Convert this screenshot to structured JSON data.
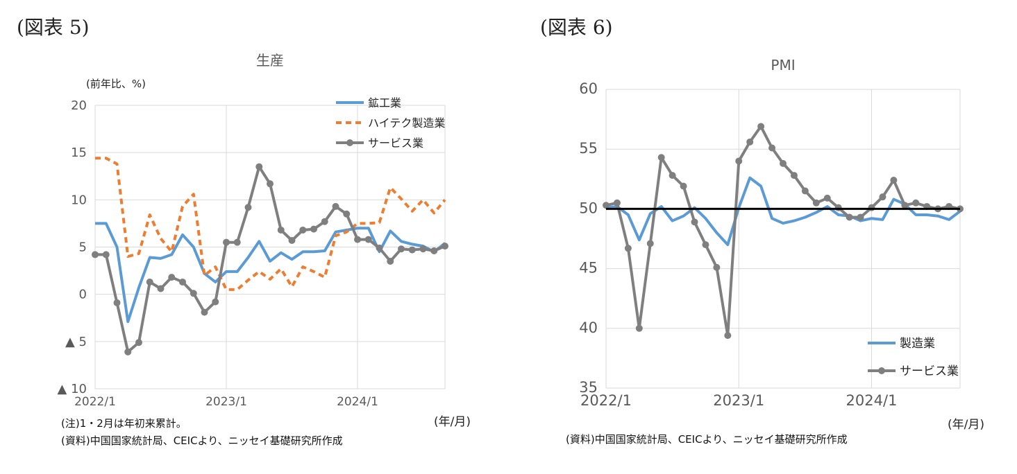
{
  "figure_left_label": "(図表 5)",
  "figure_right_label": "(図表 6)",
  "left_notes": {
    "note1": "(注)1・2月は年初来累計。",
    "source": "(資料)中国国家統計局、CEICより、ニッセイ基礎研究所作成"
  },
  "right_notes": {
    "source": "(資料)中国国家統計局、CEICより、ニッセイ基礎研究所作成"
  },
  "colors": {
    "blue": "#5b9bd5",
    "orange": "#ed7d31",
    "gray": "#7f7f7f",
    "black": "#000000",
    "grid": "#d9d9d9"
  },
  "chart_data": [
    {
      "type": "line",
      "title": "生産",
      "ylabel": "(前年比、%)",
      "xunit": "(年/月)",
      "ylim": [
        -10,
        20
      ],
      "yticks": [
        {
          "v": 20,
          "label": "20"
        },
        {
          "v": 15,
          "label": "15"
        },
        {
          "v": 10,
          "label": "10"
        },
        {
          "v": 5,
          "label": "5"
        },
        {
          "v": 0,
          "label": "0"
        },
        {
          "v": -5,
          "label": "▲ 5"
        },
        {
          "v": -10,
          "label": "▲ 10"
        }
      ],
      "x_start": "2022/1",
      "n_months": 33,
      "xticks": [
        {
          "i": 0,
          "label": "2022/1"
        },
        {
          "i": 12,
          "label": "2023/1"
        },
        {
          "i": 24,
          "label": "2024/1"
        }
      ],
      "grid": true,
      "legend_position": "top-right",
      "series": [
        {
          "name": "鉱工業",
          "color": "blue",
          "style": "solid",
          "markers": false,
          "values": [
            7.5,
            7.5,
            5.0,
            -2.9,
            0.7,
            3.9,
            3.8,
            4.2,
            6.3,
            5.0,
            2.2,
            1.3,
            2.4,
            2.4,
            3.9,
            5.6,
            3.5,
            4.4,
            3.7,
            4.5,
            4.5,
            4.6,
            6.6,
            6.8,
            7.0,
            7.0,
            4.5,
            6.7,
            5.6,
            5.3,
            5.1,
            4.5,
            5.4
          ]
        },
        {
          "name": "ハイテク製造業",
          "color": "orange",
          "style": "dashed",
          "markers": false,
          "values": [
            14.4,
            14.4,
            13.8,
            4.0,
            4.3,
            8.4,
            5.9,
            4.5,
            9.3,
            10.6,
            2.0,
            2.9,
            0.5,
            0.5,
            1.5,
            2.4,
            1.6,
            2.7,
            0.8,
            2.9,
            2.4,
            1.8,
            6.2,
            6.6,
            7.5,
            7.5,
            7.6,
            11.3,
            10.1,
            8.8,
            10.0,
            8.6,
            10.0
          ]
        },
        {
          "name": "サービス業",
          "color": "gray",
          "style": "solid",
          "markers": true,
          "values": [
            4.2,
            4.2,
            -0.9,
            -6.1,
            -5.1,
            1.3,
            0.6,
            1.8,
            1.3,
            0.1,
            -1.9,
            -0.8,
            5.5,
            5.5,
            9.2,
            13.5,
            11.7,
            6.8,
            5.7,
            6.8,
            6.9,
            7.7,
            9.3,
            8.5,
            5.8,
            5.8,
            4.9,
            3.5,
            4.8,
            4.7,
            4.8,
            4.6,
            5.1
          ]
        }
      ]
    },
    {
      "type": "line",
      "title": "PMI",
      "xunit": "(年/月)",
      "ylim": [
        35,
        60
      ],
      "yticks": [
        {
          "v": 60,
          "label": "60"
        },
        {
          "v": 55,
          "label": "55"
        },
        {
          "v": 50,
          "label": "50"
        },
        {
          "v": 45,
          "label": "45"
        },
        {
          "v": 40,
          "label": "40"
        },
        {
          "v": 35,
          "label": "35"
        }
      ],
      "x_start": "2022/1",
      "n_months": 33,
      "xticks": [
        {
          "i": 0,
          "label": "2022/1"
        },
        {
          "i": 12,
          "label": "2023/1"
        },
        {
          "i": 24,
          "label": "2024/1"
        }
      ],
      "grid": true,
      "legend_position": "bottom-right",
      "reference_line": {
        "value": 50,
        "color": "black"
      },
      "series": [
        {
          "name": "製造業",
          "color": "blue",
          "style": "solid",
          "markers": false,
          "values": [
            50.1,
            50.2,
            49.5,
            47.4,
            49.6,
            50.2,
            49.0,
            49.4,
            50.1,
            49.2,
            48.0,
            47.0,
            50.1,
            52.6,
            51.9,
            49.2,
            48.8,
            49.0,
            49.3,
            49.7,
            50.2,
            49.5,
            49.4,
            49.0,
            49.2,
            49.1,
            50.8,
            50.4,
            49.5,
            49.5,
            49.4,
            49.1,
            49.8
          ]
        },
        {
          "name": "サービス業",
          "color": "gray",
          "style": "solid",
          "markers": true,
          "values": [
            50.3,
            50.5,
            46.7,
            40.0,
            47.1,
            54.3,
            52.8,
            51.9,
            48.9,
            47.0,
            45.1,
            39.4,
            54.0,
            55.6,
            56.9,
            55.1,
            53.8,
            52.8,
            51.5,
            50.5,
            50.9,
            50.1,
            49.3,
            49.3,
            50.1,
            51.0,
            52.4,
            50.3,
            50.5,
            50.2,
            50.0,
            50.2,
            50.0
          ]
        }
      ]
    }
  ]
}
